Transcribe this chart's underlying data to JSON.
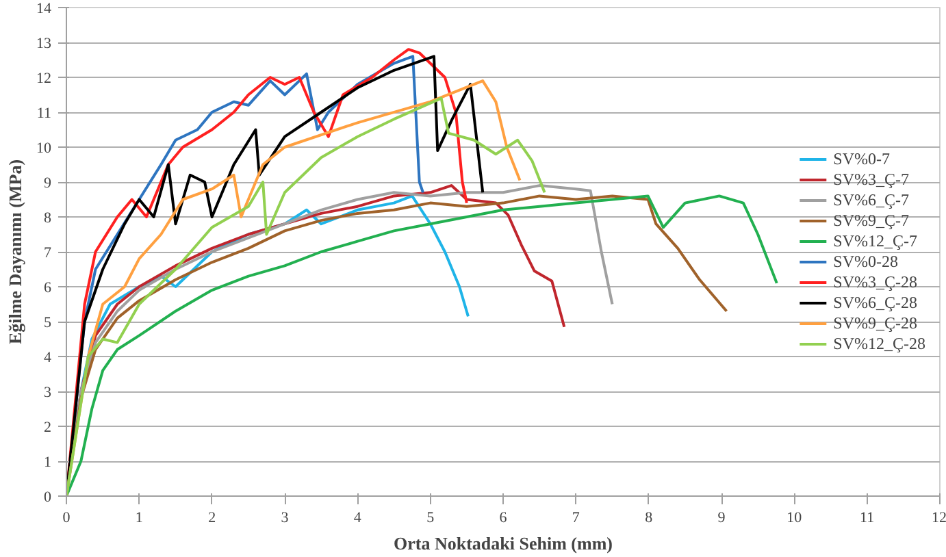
{
  "chart_data": {
    "type": "line",
    "xlabel": "Orta Noktadaki Sehim (mm)",
    "ylabel": "Eğilme Dayanımı (MPa)",
    "xlim": [
      0,
      12
    ],
    "xticks": [
      0,
      1,
      2,
      3,
      4,
      5,
      6,
      7,
      8,
      9,
      10,
      11,
      12
    ],
    "ylim": [
      0,
      14
    ],
    "yticks": [
      0,
      1,
      2,
      3,
      4,
      5,
      6,
      7,
      8,
      9,
      10,
      11,
      12,
      13,
      14
    ],
    "grid": "y",
    "legend": "right",
    "marker": "none",
    "line_style": "solid",
    "series": [
      {
        "name": "SV%0-7",
        "color": "#1fb4e8",
        "x": [
          0,
          0.2,
          0.35,
          0.6,
          1,
          1.3,
          1.5,
          2,
          2.5,
          3,
          3.3,
          3.5,
          4,
          4.5,
          4.75,
          5.0,
          5.2,
          5.4,
          5.52
        ],
        "values": [
          0,
          3,
          4.5,
          5.5,
          6,
          6.3,
          6.0,
          7,
          7.5,
          7.8,
          8.2,
          7.8,
          8.2,
          8.4,
          8.6,
          7.8,
          7,
          6,
          5.15
        ]
      },
      {
        "name": "SV%3_Ç-7",
        "color": "#c0262d",
        "x": [
          0,
          0.2,
          0.4,
          0.7,
          1,
          1.5,
          2,
          2.5,
          3,
          3.5,
          4,
          4.5,
          5,
          5.29,
          5.5,
          5.9,
          6.07,
          6.25,
          6.43,
          6.67,
          6.84
        ],
        "values": [
          0,
          3,
          4.6,
          5.5,
          6,
          6.6,
          7.1,
          7.5,
          7.8,
          8.1,
          8.3,
          8.6,
          8.7,
          8.9,
          8.5,
          8.4,
          8.05,
          7.2,
          6.45,
          6.16,
          4.85
        ]
      },
      {
        "name": "SV%6_Ç-7",
        "color": "#a0a0a0",
        "x": [
          0,
          0.2,
          0.4,
          0.7,
          1,
          1.5,
          2,
          2.5,
          3,
          3.5,
          4,
          4.5,
          5,
          5.5,
          6,
          6.5,
          7,
          7.2,
          7.35,
          7.5
        ],
        "values": [
          0,
          3,
          4.4,
          5.3,
          5.9,
          6.5,
          7,
          7.4,
          7.8,
          8.2,
          8.5,
          8.7,
          8.6,
          8.7,
          8.7,
          8.9,
          8.8,
          8.75,
          7,
          5.5
        ]
      },
      {
        "name": "SV%9_Ç-7",
        "color": "#a0622a",
        "x": [
          0,
          0.2,
          0.4,
          0.7,
          1,
          1.5,
          2,
          2.5,
          3,
          3.5,
          4,
          4.5,
          5,
          5.5,
          6,
          6.5,
          7,
          7.5,
          7.99,
          8.1,
          8.4,
          8.7,
          9.07
        ],
        "values": [
          0,
          2.8,
          4.2,
          5.1,
          5.6,
          6.2,
          6.7,
          7.1,
          7.6,
          7.9,
          8.1,
          8.2,
          8.4,
          8.3,
          8.4,
          8.6,
          8.5,
          8.6,
          8.5,
          7.8,
          7.1,
          6.2,
          5.3
        ]
      },
      {
        "name": "SV%12_Ç-7",
        "color": "#22b050",
        "x": [
          0,
          0.2,
          0.35,
          0.5,
          0.7,
          1,
          1.5,
          2,
          2.5,
          3,
          3.5,
          4,
          4.5,
          5,
          5.5,
          6,
          6.5,
          7,
          7.5,
          7.99,
          8.2,
          8.5,
          8.97,
          9.3,
          9.5,
          9.76
        ],
        "values": [
          0,
          1,
          2.5,
          3.6,
          4.2,
          4.6,
          5.3,
          5.9,
          6.3,
          6.6,
          7.0,
          7.3,
          7.6,
          7.8,
          8.0,
          8.2,
          8.3,
          8.4,
          8.5,
          8.6,
          7.7,
          8.4,
          8.6,
          8.4,
          7.5,
          6.1
        ]
      },
      {
        "name": "SV%0-28",
        "color": "#2e75c0",
        "x": [
          0,
          0.25,
          0.4,
          0.7,
          1,
          1.3,
          1.5,
          1.8,
          2,
          2.3,
          2.5,
          2.8,
          3,
          3.3,
          3.45,
          3.6,
          4,
          4.5,
          4.76,
          4.85,
          4.9
        ],
        "values": [
          0,
          5,
          6.5,
          7.5,
          8.5,
          9.5,
          10.2,
          10.5,
          11,
          11.3,
          11.2,
          11.9,
          11.5,
          12.1,
          10.5,
          11,
          11.8,
          12.4,
          12.6,
          9,
          8.7
        ]
      },
      {
        "name": "SV%3_Ç-28",
        "color": "#ff2020",
        "x": [
          0,
          0.25,
          0.4,
          0.7,
          0.9,
          1.1,
          1.4,
          1.6,
          2,
          2.3,
          2.5,
          2.8,
          3,
          3.2,
          3.4,
          3.6,
          3.8,
          4.2,
          4.5,
          4.7,
          4.85,
          5.2,
          5.35,
          5.44,
          5.5
        ],
        "values": [
          0,
          5.5,
          7,
          8,
          8.5,
          8,
          9.5,
          10,
          10.5,
          11,
          11.5,
          12,
          11.8,
          12,
          11,
          10.3,
          11.5,
          12,
          12.5,
          12.8,
          12.7,
          12,
          11,
          9,
          8.4
        ]
      },
      {
        "name": "SV%6_Ç-28",
        "color": "#000000",
        "x": [
          0,
          0.25,
          0.5,
          0.8,
          1,
          1.2,
          1.4,
          1.5,
          1.7,
          1.9,
          2,
          2.3,
          2.6,
          2.65,
          3,
          3.5,
          4,
          4.5,
          5.05,
          5.1,
          5.3,
          5.55,
          5.72
        ],
        "values": [
          0,
          5,
          6.5,
          7.8,
          8.5,
          8,
          9.5,
          7.8,
          9.2,
          9,
          8,
          9.5,
          10.5,
          9.2,
          10.3,
          11,
          11.7,
          12.2,
          12.6,
          9.9,
          10.8,
          11.8,
          8.7
        ]
      },
      {
        "name": "SV%9_Ç-28",
        "color": "#ffa040",
        "x": [
          0,
          0.3,
          0.5,
          0.8,
          1,
          1.3,
          1.6,
          2,
          2.3,
          2.4,
          2.7,
          3,
          4,
          5,
          5.72,
          5.9,
          6.05,
          6.23
        ],
        "values": [
          0,
          4,
          5.5,
          6,
          6.8,
          7.5,
          8.5,
          8.8,
          9.2,
          8,
          9.5,
          10,
          10.7,
          11.3,
          11.9,
          11.3,
          10,
          9.05
        ]
      },
      {
        "name": "SV%12_Ç-28",
        "color": "#92d050",
        "x": [
          0,
          0.3,
          0.5,
          0.7,
          1,
          1.5,
          2,
          2.5,
          2.7,
          2.75,
          3,
          3.5,
          4,
          4.5,
          5.15,
          5.25,
          5.6,
          5.9,
          6.2,
          6.4,
          6.57
        ],
        "values": [
          0,
          4,
          4.5,
          4.4,
          5.5,
          6.5,
          7.7,
          8.3,
          9,
          7.5,
          8.7,
          9.7,
          10.3,
          10.8,
          11.4,
          10.4,
          10.2,
          9.8,
          10.2,
          9.6,
          8.7
        ]
      }
    ]
  }
}
